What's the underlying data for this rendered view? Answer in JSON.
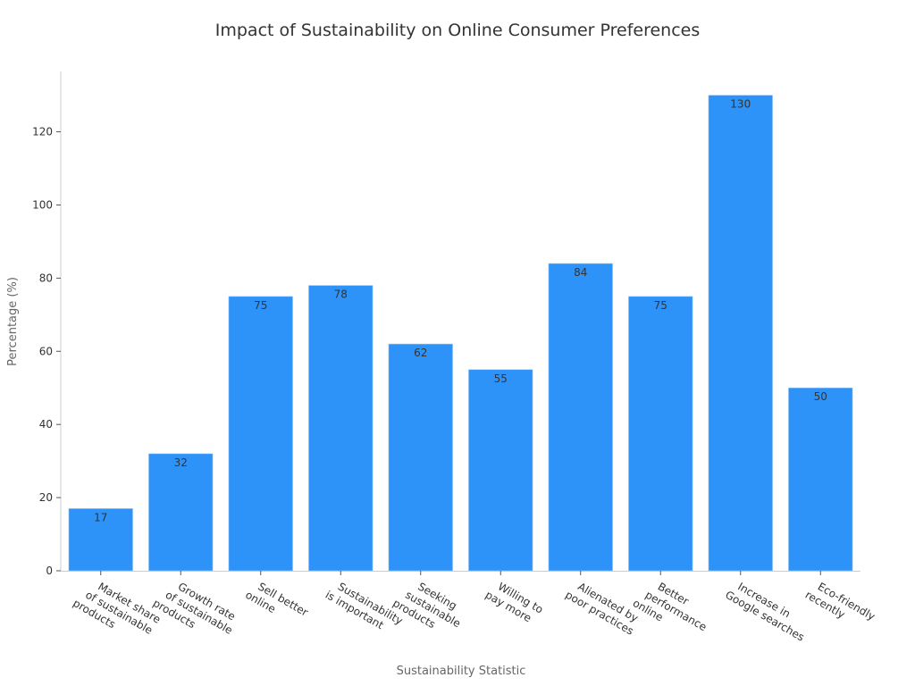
{
  "chart_data": {
    "type": "bar",
    "title": "Impact of Sustainability on Online Consumer Preferences",
    "xlabel": "Sustainability Statistic",
    "ylabel": "Percentage (%)",
    "categories": [
      "Market share\nof sustainable\nproducts",
      "Growth rate\nof sustainable\nproducts",
      "Sell better\nonline",
      "Sustainability\nis important",
      "Seeking\nsustainable\nproducts",
      "Willing to\npay more",
      "Alienated by\npoor practices",
      "Better\nperformance\nonline",
      "Increase in\nGoogle searches",
      "Eco-friendly\nrecently"
    ],
    "values": [
      17,
      32,
      75,
      78,
      62,
      55,
      84,
      75,
      130,
      50
    ],
    "data_labels": [
      "17",
      "32",
      "75",
      "78",
      "62",
      "55",
      "84",
      "75",
      "130",
      "50"
    ],
    "yticks": [
      0,
      20,
      40,
      60,
      80,
      100,
      120
    ],
    "ylim": [
      0,
      136.5
    ],
    "grid": false,
    "legend": "none",
    "bar_color": "#2e93f8"
  }
}
